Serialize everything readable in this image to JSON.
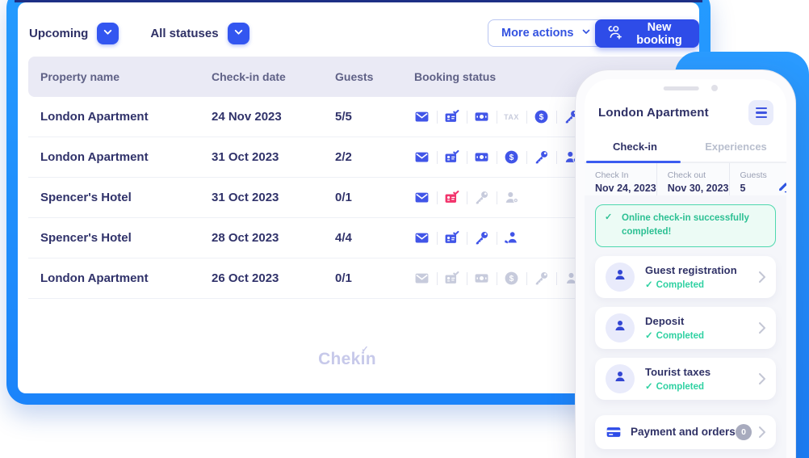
{
  "colors": {
    "accent_blue": "#2e4ce8",
    "frame_blue": "#1e8cfc",
    "navy_text": "#2f3166",
    "success_teal": "#2fd1a2",
    "alert_red": "#f2336b",
    "inactive_gray": "#c7cbdc"
  },
  "main": {
    "filters": [
      {
        "label": "Upcoming"
      },
      {
        "label": "All statuses"
      }
    ],
    "actions": {
      "more_actions": "More actions",
      "new_booking": "New booking"
    },
    "table": {
      "columns": [
        "Property name",
        "Check-in date",
        "Guests",
        "Booking status"
      ],
      "rows": [
        {
          "property": "London Apartment",
          "checkin": "24 Nov 2023",
          "guests": "5/5",
          "statuses": [
            {
              "icon": "envelope",
              "state": "active"
            },
            {
              "icon": "id-card-check",
              "state": "active"
            },
            {
              "icon": "cash",
              "state": "active"
            },
            {
              "icon": "tax",
              "state": "inactive"
            },
            {
              "icon": "dollar",
              "state": "active"
            },
            {
              "icon": "key",
              "state": "active"
            }
          ]
        },
        {
          "property": "London Apartment",
          "checkin": "31 Oct 2023",
          "guests": "2/2",
          "statuses": [
            {
              "icon": "envelope",
              "state": "active"
            },
            {
              "icon": "id-card-check",
              "state": "active"
            },
            {
              "icon": "cash",
              "state": "active"
            },
            {
              "icon": "dollar",
              "state": "active"
            },
            {
              "icon": "key",
              "state": "active"
            },
            {
              "icon": "police",
              "state": "active"
            }
          ]
        },
        {
          "property": "Spencer's Hotel",
          "checkin": "31 Oct 2023",
          "guests": "0/1",
          "statuses": [
            {
              "icon": "envelope",
              "state": "active"
            },
            {
              "icon": "id-card-check",
              "state": "alert"
            },
            {
              "icon": "key",
              "state": "inactive"
            },
            {
              "icon": "police",
              "state": "inactive"
            }
          ]
        },
        {
          "property": "Spencer's Hotel",
          "checkin": "28 Oct 2023",
          "guests": "4/4",
          "statuses": [
            {
              "icon": "envelope",
              "state": "active"
            },
            {
              "icon": "id-card-check",
              "state": "active"
            },
            {
              "icon": "key",
              "state": "active"
            },
            {
              "icon": "guest-arrival",
              "state": "active"
            }
          ]
        },
        {
          "property": "London Apartment",
          "checkin": "26 Oct 2023",
          "guests": "0/1",
          "statuses": [
            {
              "icon": "envelope",
              "state": "inactive"
            },
            {
              "icon": "id-card-check",
              "state": "inactive"
            },
            {
              "icon": "cash",
              "state": "inactive"
            },
            {
              "icon": "dollar",
              "state": "inactive"
            },
            {
              "icon": "key",
              "state": "inactive"
            },
            {
              "icon": "guest",
              "state": "inactive"
            }
          ]
        }
      ]
    },
    "logo": "Chekin"
  },
  "phone": {
    "title": "London Apartment",
    "tabs": [
      {
        "label": "Check-in",
        "active": true
      },
      {
        "label": "Experiences",
        "active": false
      }
    ],
    "summary": [
      {
        "label": "Check In",
        "value": "Nov 24, 2023"
      },
      {
        "label": "Check out",
        "value": "Nov 30, 2023"
      },
      {
        "label": "Guests",
        "value": "5"
      }
    ],
    "banner": "Online check-in successfully completed!",
    "cards": [
      {
        "title": "Guest registration",
        "status": "Completed"
      },
      {
        "title": "Deposit",
        "status": "Completed"
      },
      {
        "title": "Tourist taxes",
        "status": "Completed"
      }
    ],
    "payment_card": {
      "title": "Payment and orders",
      "badge": "0"
    }
  }
}
